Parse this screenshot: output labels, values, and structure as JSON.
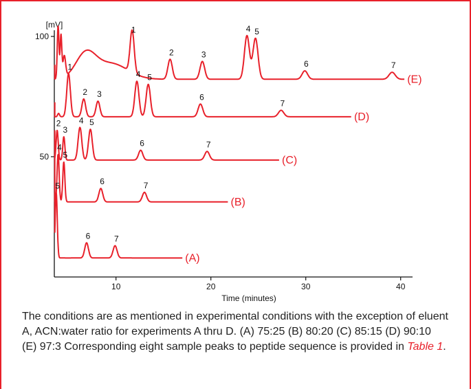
{
  "chart_data": {
    "type": "line",
    "title": "",
    "xlabel": "Time (minutes)",
    "ylabel": "[mV]",
    "xlim": [
      3.5,
      41
    ],
    "ylim": [
      0,
      105
    ],
    "x_ticks": [
      10,
      20,
      30,
      40
    ],
    "y_ticks": [
      50,
      100
    ],
    "grid": false,
    "series": [
      {
        "name": "(E)",
        "baseline": 82.2,
        "peaks": [
          {
            "label": "1",
            "x": 11.7,
            "y": 99.8
          },
          {
            "label": "2",
            "x": 15.7,
            "y": 90.5
          },
          {
            "label": "3",
            "x": 19.1,
            "y": 89.6
          },
          {
            "label": "4",
            "x": 23.8,
            "y": 100.3
          },
          {
            "label": "5",
            "x": 24.7,
            "y": 99.2
          },
          {
            "label": "6",
            "x": 29.9,
            "y": 85.7
          },
          {
            "label": "7",
            "x": 39.1,
            "y": 85.1
          }
        ]
      },
      {
        "name": "(D)",
        "baseline": 66.6,
        "peaks": [
          {
            "label": "1",
            "x": 5.0,
            "y": 84.5
          },
          {
            "label": "2",
            "x": 6.6,
            "y": 74.0
          },
          {
            "label": "3",
            "x": 8.1,
            "y": 73.1
          },
          {
            "label": "4",
            "x": 12.2,
            "y": 81.4
          },
          {
            "label": "5",
            "x": 13.4,
            "y": 80.1
          },
          {
            "label": "6",
            "x": 18.9,
            "y": 71.9
          },
          {
            "label": "7",
            "x": 27.4,
            "y": 69.3
          }
        ]
      },
      {
        "name": "(C)",
        "baseline": 48.6,
        "peaks": [
          {
            "label": "2",
            "x": 3.8,
            "y": 61.0
          },
          {
            "label": "3",
            "x": 4.5,
            "y": 58.3
          },
          {
            "label": "4",
            "x": 6.2,
            "y": 62.2
          },
          {
            "label": "5",
            "x": 7.3,
            "y": 61.4
          },
          {
            "label": "6",
            "x": 12.6,
            "y": 52.7
          },
          {
            "label": "7",
            "x": 19.6,
            "y": 52.2
          }
        ]
      },
      {
        "name": "(B)",
        "baseline": 31.2,
        "peaks": [
          {
            "label": "4",
            "x": 3.9,
            "y": 51.0
          },
          {
            "label": "5",
            "x": 4.5,
            "y": 47.8
          },
          {
            "label": "6",
            "x": 8.4,
            "y": 36.8
          },
          {
            "label": "7",
            "x": 13.0,
            "y": 35.2
          }
        ]
      },
      {
        "name": "(A)",
        "baseline": 7.9,
        "peaks": [
          {
            "label": "5",
            "x": 3.7,
            "y": 35.0
          },
          {
            "label": "6",
            "x": 6.9,
            "y": 14.2
          },
          {
            "label": "7",
            "x": 9.9,
            "y": 13.0
          }
        ]
      }
    ]
  },
  "caption": {
    "text": "The conditions are as mentioned in experimental conditions with the exception of eluent A, ACN:water ratio for experiments A thru D.  (A) 75:25 (B) 80:20 (C) 85:15 (D) 90:10 (E) 97:3  Corresponding eight sample peaks to peptide sequence is provided in ",
    "ref": "Table 1",
    "end": "."
  },
  "colors": {
    "trace": "#e8202a",
    "axis": "#111111",
    "text": "#222222"
  }
}
